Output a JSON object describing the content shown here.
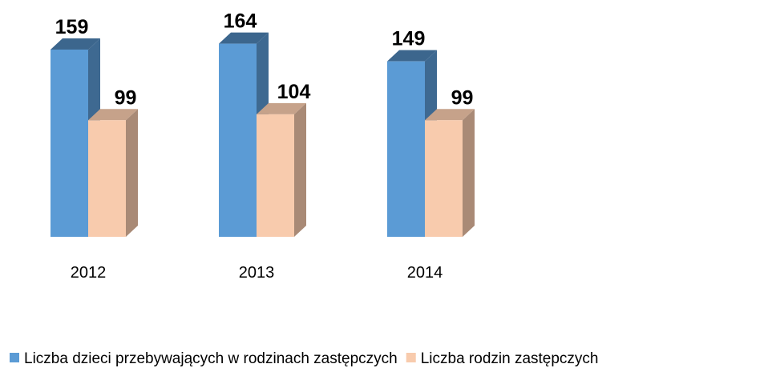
{
  "chart_data": {
    "type": "bar3d",
    "categories": [
      "2012",
      "2013",
      "2014"
    ],
    "series": [
      {
        "name": "Liczba dzieci przebywających w rodzinach zastępczych",
        "color": "#5b9bd5",
        "values": [
          159,
          164,
          149
        ]
      },
      {
        "name": "Liczba rodzin zastępczych",
        "color": "#f8cbad",
        "values": [
          99,
          104,
          99
        ]
      }
    ]
  }
}
